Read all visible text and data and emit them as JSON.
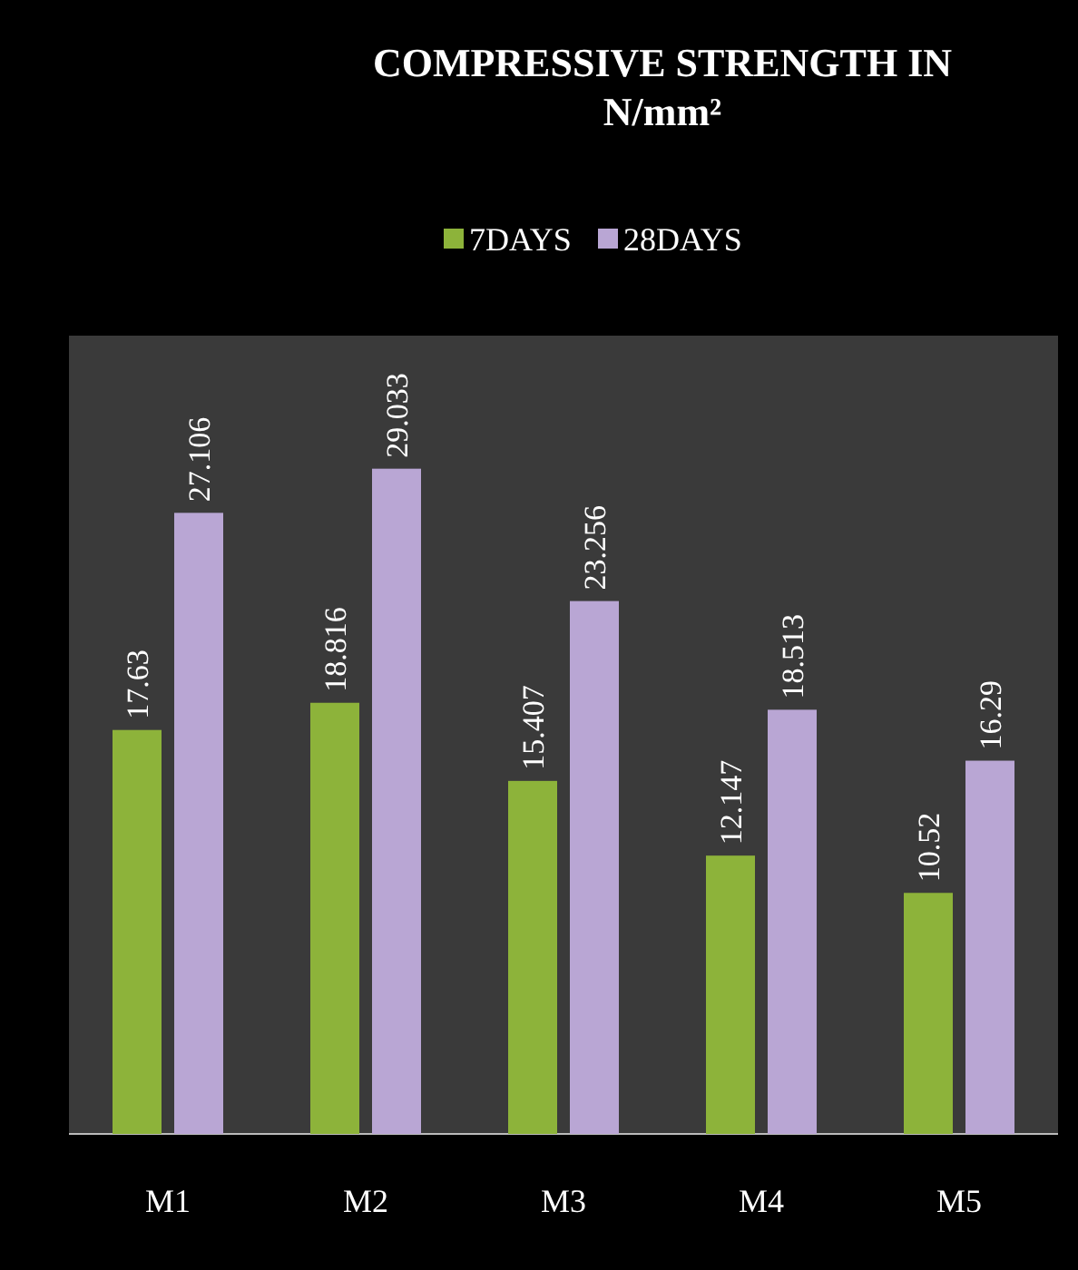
{
  "chart_data": {
    "type": "bar",
    "title": "COMPRESSIVE STRENGTH IN N/mm²",
    "categories": [
      "M1",
      "M2",
      "M3",
      "M4",
      "M5"
    ],
    "series": [
      {
        "name": "7DAYS",
        "color": "#8db33a",
        "values": [
          17.63,
          18.816,
          15.407,
          12.147,
          10.52
        ]
      },
      {
        "name": "28DAYS",
        "color": "#b9a6d4",
        "values": [
          27.106,
          29.033,
          23.256,
          18.513,
          16.29
        ]
      }
    ],
    "data_labels": true,
    "legend": "top",
    "grid": false
  }
}
